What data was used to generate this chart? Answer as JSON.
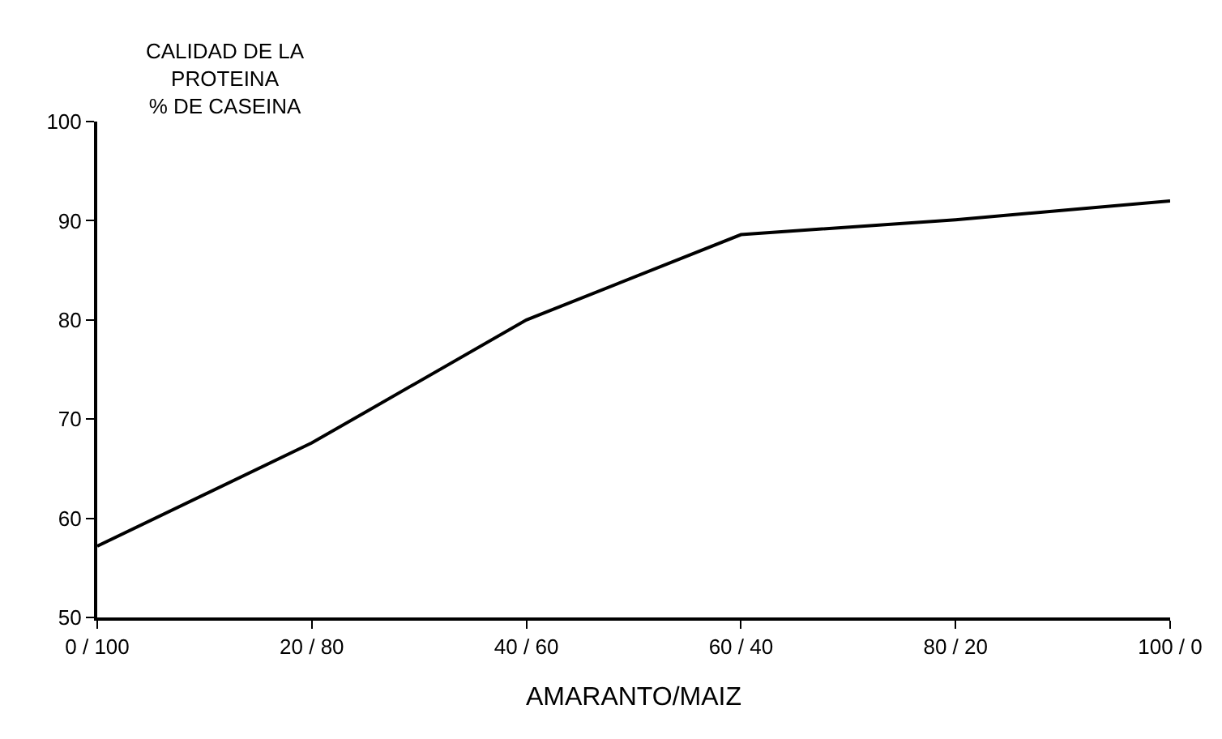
{
  "chart_data": {
    "type": "line",
    "ylabel": "CALIDAD DE LA\nPROTEINA\n% DE CASEINA",
    "xlabel": "AMARANTO/MAIZ",
    "categories": [
      "0 / 100",
      "20 / 80",
      "40 / 60",
      "60 / 40",
      "80 / 20",
      "100 / 0"
    ],
    "series": [
      {
        "color": "#000000",
        "values": [
          57.2,
          67.6,
          80.0,
          88.6,
          90.1,
          92.0
        ]
      }
    ],
    "ylim": [
      50,
      100
    ],
    "yticks": [
      50,
      60,
      70,
      80,
      90,
      100
    ],
    "marker": "none",
    "line_style": "solid"
  }
}
